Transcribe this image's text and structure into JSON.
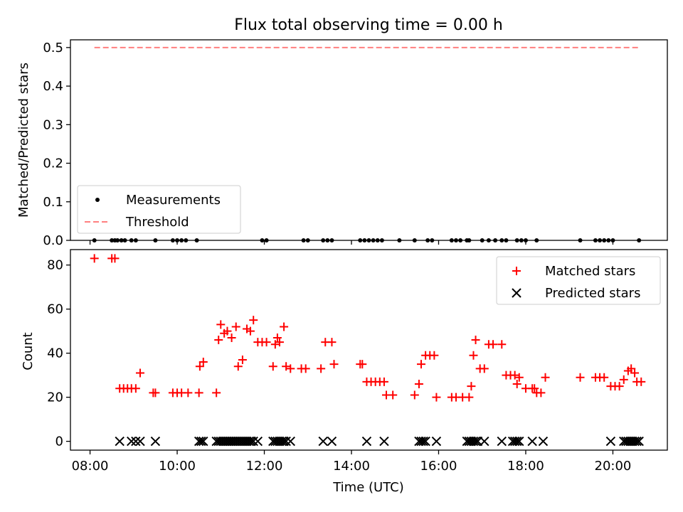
{
  "chart_data": [
    {
      "type": "scatter",
      "title": "Flux total observing time = 0.00 h",
      "xlabel": "",
      "ylabel": "Matched/Predicted stars",
      "xlim": [
        7.55,
        21.25
      ],
      "ylim": [
        0,
        0.52
      ],
      "yticks": [
        0.0,
        0.1,
        0.2,
        0.3,
        0.4,
        0.5
      ],
      "ytick_labels": [
        "0.0",
        "0.1",
        "0.2",
        "0.3",
        "0.4",
        "0.5"
      ],
      "xticks": [
        8,
        10,
        12,
        14,
        16,
        18,
        20
      ],
      "show_xtick_labels": false,
      "grid": false,
      "legend": {
        "position": "lower-left",
        "entries": [
          {
            "label": "Measurements",
            "marker": "dot",
            "color": "#000000"
          },
          {
            "label": "Threshold",
            "marker": "dashed-line",
            "color": "#ff7f7f"
          }
        ]
      },
      "series": [
        {
          "name": "Measurements",
          "marker": "dot",
          "color": "#000000",
          "x": [
            8.1,
            8.5,
            8.57,
            8.63,
            8.72,
            8.8,
            8.95,
            9.05,
            9.5,
            9.9,
            10.0,
            10.1,
            10.2,
            10.45,
            11.95,
            12.05,
            12.9,
            13.0,
            13.35,
            13.45,
            13.55,
            14.2,
            14.3,
            14.4,
            14.5,
            14.6,
            14.7,
            15.1,
            15.45,
            15.75,
            15.85,
            16.3,
            16.4,
            16.5,
            16.65,
            16.7,
            17.0,
            17.15,
            17.3,
            17.45,
            17.55,
            17.8,
            17.9,
            18.0,
            18.25,
            19.25,
            19.6,
            19.7,
            19.8,
            19.9,
            20.0,
            20.6
          ],
          "y": [
            0,
            0,
            0,
            0,
            0,
            0,
            0,
            0,
            0,
            0,
            0,
            0,
            0,
            0,
            0,
            0,
            0,
            0,
            0,
            0,
            0,
            0,
            0,
            0,
            0,
            0,
            0,
            0,
            0,
            0,
            0,
            0,
            0,
            0,
            0,
            0,
            0,
            0,
            0,
            0,
            0,
            0,
            0,
            0,
            0,
            0,
            0,
            0,
            0,
            0,
            0,
            0
          ]
        },
        {
          "name": "Threshold",
          "marker": "dashed-line",
          "color": "#ff7f7f",
          "x": [
            8.1,
            20.6
          ],
          "y": [
            0.5,
            0.5
          ]
        }
      ]
    },
    {
      "type": "scatter",
      "title": "",
      "xlabel": "Time (UTC)",
      "ylabel": "Count",
      "xlim": [
        7.55,
        21.25
      ],
      "ylim": [
        -4,
        87
      ],
      "yticks": [
        0,
        20,
        40,
        60,
        80
      ],
      "ytick_labels": [
        "0",
        "20",
        "40",
        "60",
        "80"
      ],
      "xticks": [
        8,
        10,
        12,
        14,
        16,
        18,
        20
      ],
      "xtick_labels": [
        "08:00",
        "10:00",
        "12:00",
        "14:00",
        "16:00",
        "18:00",
        "20:00"
      ],
      "grid": false,
      "legend": {
        "position": "top-right",
        "entries": [
          {
            "label": "Matched stars",
            "marker": "plus",
            "color": "#ff0000"
          },
          {
            "label": "Predicted stars",
            "marker": "x",
            "color": "#000000"
          }
        ]
      },
      "series": [
        {
          "name": "Matched stars",
          "marker": "plus",
          "color": "#ff0000",
          "x": [
            8.1,
            8.5,
            8.57,
            8.68,
            8.77,
            8.86,
            8.95,
            9.05,
            9.15,
            9.45,
            9.5,
            9.9,
            10.0,
            10.1,
            10.25,
            10.5,
            10.52,
            10.6,
            10.9,
            10.95,
            11.0,
            11.08,
            11.15,
            11.25,
            11.35,
            11.4,
            11.5,
            11.6,
            11.68,
            11.75,
            11.85,
            11.95,
            12.05,
            12.2,
            12.25,
            12.3,
            12.35,
            12.45,
            12.5,
            12.6,
            12.85,
            12.95,
            13.3,
            13.4,
            13.55,
            13.6,
            14.2,
            14.25,
            14.35,
            14.45,
            14.55,
            14.65,
            14.75,
            14.8,
            14.95,
            15.45,
            15.55,
            15.6,
            15.7,
            15.8,
            15.9,
            15.95,
            16.3,
            16.4,
            16.55,
            16.7,
            16.75,
            16.8,
            16.85,
            16.95,
            17.05,
            17.15,
            17.25,
            17.45,
            17.55,
            17.65,
            17.75,
            17.8,
            17.85,
            18.0,
            18.15,
            18.2,
            18.25,
            18.35,
            18.45,
            19.25,
            19.6,
            19.7,
            19.8,
            19.95,
            20.05,
            20.15,
            20.25,
            20.35,
            20.42,
            20.5,
            20.55,
            20.65
          ],
          "y": [
            83,
            83,
            83,
            24,
            24,
            24,
            24,
            24,
            31,
            22,
            22,
            22,
            22,
            22,
            22,
            22,
            34,
            36,
            22,
            46,
            53,
            49,
            50,
            47,
            52,
            34,
            37,
            51,
            50,
            55,
            45,
            45,
            45,
            34,
            44,
            47,
            45,
            52,
            34,
            33,
            33,
            33,
            33,
            45,
            45,
            35,
            35,
            35,
            27,
            27,
            27,
            27,
            27,
            21,
            21,
            21,
            26,
            35,
            39,
            39,
            39,
            20,
            20,
            20,
            20,
            20,
            25,
            39,
            46,
            33,
            33,
            44,
            44,
            44,
            30,
            30,
            30,
            26,
            29,
            24,
            24,
            24,
            22,
            22,
            29,
            29,
            29,
            29,
            29,
            25,
            25,
            25,
            28,
            32,
            33,
            31,
            27,
            27
          ]
        },
        {
          "name": "Predicted stars",
          "marker": "x",
          "color": "#000000",
          "x": [
            8.68,
            8.95,
            9.05,
            9.15,
            9.5,
            10.5,
            10.55,
            10.6,
            10.9,
            10.95,
            11.0,
            11.05,
            11.1,
            11.15,
            11.2,
            11.25,
            11.3,
            11.35,
            11.4,
            11.45,
            11.5,
            11.55,
            11.6,
            11.65,
            11.7,
            11.75,
            11.85,
            12.2,
            12.25,
            12.3,
            12.35,
            12.4,
            12.45,
            12.5,
            12.6,
            13.35,
            13.55,
            14.35,
            14.75,
            15.55,
            15.6,
            15.65,
            15.7,
            15.95,
            16.65,
            16.7,
            16.75,
            16.8,
            16.85,
            16.9,
            17.05,
            17.45,
            17.7,
            17.75,
            17.8,
            17.85,
            18.15,
            18.4,
            19.95,
            20.25,
            20.3,
            20.35,
            20.4,
            20.45,
            20.5,
            20.55,
            20.6
          ],
          "y": [
            0,
            0,
            0,
            0,
            0,
            0,
            0,
            0,
            0,
            0,
            0,
            0,
            0,
            0,
            0,
            0,
            0,
            0,
            0,
            0,
            0,
            0,
            0,
            0,
            0,
            0,
            0,
            0,
            0,
            0,
            0,
            0,
            0,
            0,
            0,
            0,
            0,
            0,
            0,
            0,
            0,
            0,
            0,
            0,
            0,
            0,
            0,
            0,
            0,
            0,
            0,
            0,
            0,
            0,
            0,
            0,
            0,
            0,
            0,
            0,
            0,
            0,
            0,
            0,
            0,
            0,
            0
          ]
        }
      ]
    }
  ]
}
